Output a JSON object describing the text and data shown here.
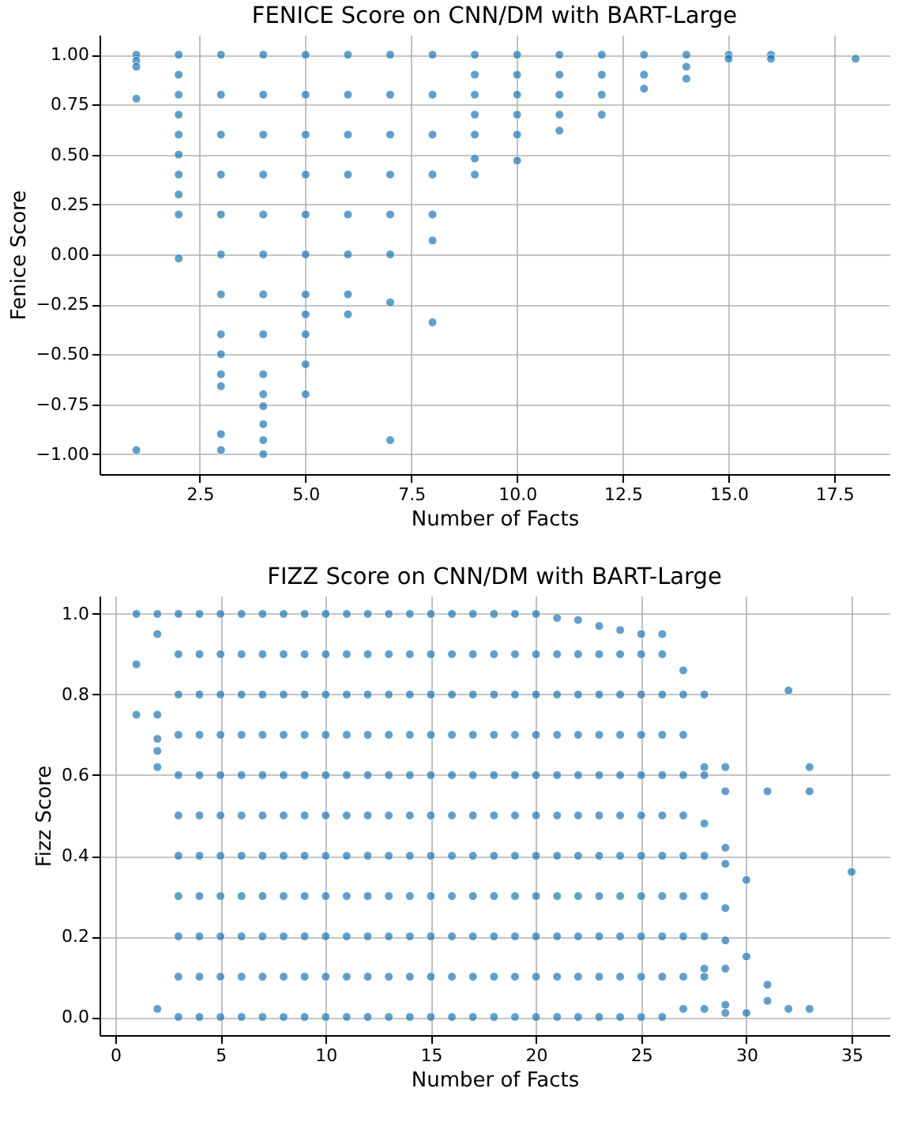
{
  "chart_data": [
    {
      "type": "scatter",
      "title": "FENICE Score on CNN/DM with BART-Large",
      "xlabel": "Number of Facts",
      "ylabel": "Fenice Score",
      "xlim": [
        0.13,
        18.8
      ],
      "xticks": [
        {
          "value": 2.5,
          "label": "2.5"
        },
        {
          "value": 5,
          "label": "5.0"
        },
        {
          "value": 7.5,
          "label": "7.5"
        },
        {
          "value": 10,
          "label": "10.0"
        },
        {
          "value": 12.5,
          "label": "12.5"
        },
        {
          "value": 15,
          "label": "15.0"
        },
        {
          "value": 17.5,
          "label": "17.5"
        }
      ],
      "ylim": [
        -1.1,
        1.1
      ],
      "yticks": [
        {
          "value": -1,
          "label": "−1.00"
        },
        {
          "value": -0.75,
          "label": "−0.75"
        },
        {
          "value": -0.5,
          "label": "−0.50"
        },
        {
          "value": -0.25,
          "label": "−0.25"
        },
        {
          "value": 0,
          "label": "0.00"
        },
        {
          "value": 0.25,
          "label": "0.25"
        },
        {
          "value": 0.5,
          "label": "0.50"
        },
        {
          "value": 0.75,
          "label": "0.75"
        },
        {
          "value": 1,
          "label": "1.00"
        }
      ],
      "grid": true,
      "legend": false,
      "marker": "circle",
      "series": [
        {
          "color": "#1f77b4",
          "x": [
            1,
            1,
            1,
            1,
            1
          ],
          "values": [
            1.0,
            0.97,
            0.94,
            0.78,
            -0.98
          ]
        },
        {
          "color": "#1f77b4",
          "x": [
            2,
            2,
            2,
            2,
            2,
            2,
            2,
            2,
            2,
            2
          ],
          "values": [
            1.0,
            0.9,
            0.8,
            0.7,
            0.6,
            0.5,
            0.4,
            0.3,
            0.2,
            -0.02
          ]
        },
        {
          "color": "#1f77b4",
          "x": [
            3,
            3,
            3,
            3,
            3,
            3,
            3,
            3,
            3,
            3,
            3,
            3,
            3
          ],
          "values": [
            1.0,
            0.8,
            0.6,
            0.4,
            0.2,
            0,
            -0.2,
            -0.4,
            -0.5,
            -0.6,
            -0.66,
            -0.9,
            -0.98
          ]
        },
        {
          "color": "#1f77b4",
          "x": [
            4,
            4,
            4,
            4,
            4,
            4,
            4,
            4,
            4,
            4,
            4,
            4,
            4,
            4
          ],
          "values": [
            1.0,
            0.8,
            0.6,
            0.4,
            0.2,
            0,
            -0.2,
            -0.4,
            -0.6,
            -0.7,
            -0.76,
            -0.85,
            -0.93,
            -1.0
          ]
        },
        {
          "color": "#1f77b4",
          "x": [
            5,
            5,
            5,
            5,
            5,
            5,
            5,
            5,
            5,
            5,
            5
          ],
          "values": [
            1.0,
            0.8,
            0.6,
            0.4,
            0.2,
            0,
            -0.2,
            -0.3,
            -0.4,
            -0.55,
            -0.7
          ]
        },
        {
          "color": "#1f77b4",
          "x": [
            6,
            6,
            6,
            6,
            6,
            6,
            6,
            6
          ],
          "values": [
            1.0,
            0.8,
            0.6,
            0.4,
            0.2,
            0,
            -0.2,
            -0.3
          ]
        },
        {
          "color": "#1f77b4",
          "x": [
            7,
            7,
            7,
            7,
            7,
            7,
            7,
            7
          ],
          "values": [
            1.0,
            0.8,
            0.6,
            0.4,
            0.2,
            0,
            -0.24,
            -0.93
          ]
        },
        {
          "color": "#1f77b4",
          "x": [
            8,
            8,
            8,
            8,
            8,
            8,
            8
          ],
          "values": [
            1.0,
            0.8,
            0.6,
            0.4,
            0.2,
            0.07,
            -0.34
          ]
        },
        {
          "color": "#1f77b4",
          "x": [
            9,
            9,
            9,
            9,
            9,
            9,
            9
          ],
          "values": [
            1.0,
            0.9,
            0.8,
            0.7,
            0.6,
            0.48,
            0.4
          ]
        },
        {
          "color": "#1f77b4",
          "x": [
            10,
            10,
            10,
            10,
            10,
            10
          ],
          "values": [
            1.0,
            0.9,
            0.8,
            0.7,
            0.6,
            0.47
          ]
        },
        {
          "color": "#1f77b4",
          "x": [
            11,
            11,
            11,
            11,
            11
          ],
          "values": [
            1.0,
            0.9,
            0.8,
            0.7,
            0.62
          ]
        },
        {
          "color": "#1f77b4",
          "x": [
            12,
            12,
            12,
            12
          ],
          "values": [
            1.0,
            0.9,
            0.8,
            0.7
          ]
        },
        {
          "color": "#1f77b4",
          "x": [
            13,
            13,
            13
          ],
          "values": [
            1.0,
            0.9,
            0.83
          ]
        },
        {
          "color": "#1f77b4",
          "x": [
            14,
            14,
            14
          ],
          "values": [
            1.0,
            0.94,
            0.88
          ]
        },
        {
          "color": "#1f77b4",
          "x": [
            15,
            15
          ],
          "values": [
            1.0,
            0.98
          ]
        },
        {
          "color": "#1f77b4",
          "x": [
            16,
            16
          ],
          "values": [
            1.0,
            0.98
          ]
        },
        {
          "color": "#1f77b4",
          "x": [
            18
          ],
          "values": [
            0.98
          ]
        }
      ]
    },
    {
      "type": "scatter",
      "title": "FIZZ Score on CNN/DM with BART-Large",
      "xlabel": "Number of Facts",
      "ylabel": "Fizz Score",
      "xlim": [
        -0.75,
        36.8
      ],
      "xticks": [
        0,
        5,
        10,
        15,
        20,
        25,
        30,
        35
      ],
      "ylim": [
        -0.045,
        1.045
      ],
      "yticks": [
        {
          "value": 0,
          "label": "0.0"
        },
        {
          "value": 0.2,
          "label": "0.2"
        },
        {
          "value": 0.4,
          "label": "0.4"
        },
        {
          "value": 0.6,
          "label": "0.6"
        },
        {
          "value": 0.8,
          "label": "0.8"
        },
        {
          "value": 1,
          "label": "1.0"
        }
      ],
      "grid": true,
      "legend": false,
      "marker": "circle",
      "series": [
        {
          "color": "#1f77b4",
          "x": [
            1,
            1,
            1
          ],
          "values": [
            1.0,
            0.875,
            0.75
          ]
        },
        {
          "color": "#1f77b4",
          "x": [
            2,
            2,
            2,
            2,
            2,
            2,
            2
          ],
          "values": [
            1.0,
            0.95,
            0.75,
            0.69,
            0.66,
            0.62,
            0.02
          ]
        },
        {
          "color": "#1f77b4",
          "x": [
            3,
            3,
            3,
            3,
            3,
            3,
            3,
            3,
            3,
            3,
            3
          ],
          "values": [
            0,
            0.1,
            0.2,
            0.3,
            0.4,
            0.5,
            0.6,
            0.7,
            0.8,
            0.9,
            1.0
          ]
        },
        {
          "color": "#1f77b4",
          "x": [
            4,
            4,
            4,
            4,
            4,
            4,
            4,
            4,
            4,
            4,
            4
          ],
          "values": [
            0,
            0.1,
            0.2,
            0.3,
            0.4,
            0.5,
            0.6,
            0.7,
            0.8,
            0.9,
            1.0
          ]
        },
        {
          "color": "#1f77b4",
          "x": [
            5,
            5,
            5,
            5,
            5,
            5,
            5,
            5,
            5,
            5,
            5
          ],
          "values": [
            0,
            0.1,
            0.2,
            0.3,
            0.4,
            0.5,
            0.6,
            0.7,
            0.8,
            0.9,
            1.0
          ]
        },
        {
          "color": "#1f77b4",
          "x": [
            6,
            6,
            6,
            6,
            6,
            6,
            6,
            6,
            6,
            6,
            6
          ],
          "values": [
            0,
            0.1,
            0.2,
            0.3,
            0.4,
            0.5,
            0.6,
            0.7,
            0.8,
            0.9,
            1.0
          ]
        },
        {
          "color": "#1f77b4",
          "x": [
            7,
            7,
            7,
            7,
            7,
            7,
            7,
            7,
            7,
            7,
            7
          ],
          "values": [
            0,
            0.1,
            0.2,
            0.3,
            0.4,
            0.5,
            0.6,
            0.7,
            0.8,
            0.9,
            1.0
          ]
        },
        {
          "color": "#1f77b4",
          "x": [
            8,
            8,
            8,
            8,
            8,
            8,
            8,
            8,
            8,
            8,
            8
          ],
          "values": [
            0,
            0.1,
            0.2,
            0.3,
            0.4,
            0.5,
            0.6,
            0.7,
            0.8,
            0.9,
            1.0
          ]
        },
        {
          "color": "#1f77b4",
          "x": [
            9,
            9,
            9,
            9,
            9,
            9,
            9,
            9,
            9,
            9,
            9
          ],
          "values": [
            0,
            0.1,
            0.2,
            0.3,
            0.4,
            0.5,
            0.6,
            0.7,
            0.8,
            0.9,
            1.0
          ]
        },
        {
          "color": "#1f77b4",
          "x": [
            10,
            10,
            10,
            10,
            10,
            10,
            10,
            10,
            10,
            10,
            10
          ],
          "values": [
            0,
            0.1,
            0.2,
            0.3,
            0.4,
            0.5,
            0.6,
            0.7,
            0.8,
            0.9,
            1.0
          ]
        },
        {
          "color": "#1f77b4",
          "x": [
            11,
            11,
            11,
            11,
            11,
            11,
            11,
            11,
            11,
            11,
            11
          ],
          "values": [
            0,
            0.1,
            0.2,
            0.3,
            0.4,
            0.5,
            0.6,
            0.7,
            0.8,
            0.9,
            1.0
          ]
        },
        {
          "color": "#1f77b4",
          "x": [
            12,
            12,
            12,
            12,
            12,
            12,
            12,
            12,
            12,
            12,
            12
          ],
          "values": [
            0,
            0.1,
            0.2,
            0.3,
            0.4,
            0.5,
            0.6,
            0.7,
            0.8,
            0.9,
            1.0
          ]
        },
        {
          "color": "#1f77b4",
          "x": [
            13,
            13,
            13,
            13,
            13,
            13,
            13,
            13,
            13,
            13,
            13
          ],
          "values": [
            0,
            0.1,
            0.2,
            0.3,
            0.4,
            0.5,
            0.6,
            0.7,
            0.8,
            0.9,
            1.0
          ]
        },
        {
          "color": "#1f77b4",
          "x": [
            14,
            14,
            14,
            14,
            14,
            14,
            14,
            14,
            14,
            14,
            14
          ],
          "values": [
            0,
            0.1,
            0.2,
            0.3,
            0.4,
            0.5,
            0.6,
            0.7,
            0.8,
            0.9,
            1.0
          ]
        },
        {
          "color": "#1f77b4",
          "x": [
            15,
            15,
            15,
            15,
            15,
            15,
            15,
            15,
            15,
            15,
            15
          ],
          "values": [
            0,
            0.1,
            0.2,
            0.3,
            0.4,
            0.5,
            0.6,
            0.7,
            0.8,
            0.9,
            1.0
          ]
        },
        {
          "color": "#1f77b4",
          "x": [
            16,
            16,
            16,
            16,
            16,
            16,
            16,
            16,
            16,
            16,
            16
          ],
          "values": [
            0,
            0.1,
            0.2,
            0.3,
            0.4,
            0.5,
            0.6,
            0.7,
            0.8,
            0.9,
            1.0
          ]
        },
        {
          "color": "#1f77b4",
          "x": [
            17,
            17,
            17,
            17,
            17,
            17,
            17,
            17,
            17,
            17,
            17
          ],
          "values": [
            0,
            0.1,
            0.2,
            0.3,
            0.4,
            0.5,
            0.6,
            0.7,
            0.8,
            0.9,
            1.0
          ]
        },
        {
          "color": "#1f77b4",
          "x": [
            18,
            18,
            18,
            18,
            18,
            18,
            18,
            18,
            18,
            18,
            18
          ],
          "values": [
            0,
            0.1,
            0.2,
            0.3,
            0.4,
            0.5,
            0.6,
            0.7,
            0.8,
            0.9,
            1.0
          ]
        },
        {
          "color": "#1f77b4",
          "x": [
            19,
            19,
            19,
            19,
            19,
            19,
            19,
            19,
            19,
            19,
            19
          ],
          "values": [
            0,
            0.1,
            0.2,
            0.3,
            0.4,
            0.5,
            0.6,
            0.7,
            0.8,
            0.9,
            1.0
          ]
        },
        {
          "color": "#1f77b4",
          "x": [
            20,
            20,
            20,
            20,
            20,
            20,
            20,
            20,
            20,
            20,
            20
          ],
          "values": [
            0,
            0.1,
            0.2,
            0.3,
            0.4,
            0.5,
            0.6,
            0.7,
            0.8,
            0.9,
            1.0
          ]
        },
        {
          "color": "#1f77b4",
          "x": [
            21,
            21,
            21,
            21,
            21,
            21,
            21,
            21,
            21,
            21,
            21
          ],
          "values": [
            0,
            0.1,
            0.2,
            0.3,
            0.4,
            0.5,
            0.6,
            0.7,
            0.8,
            0.9,
            0.99
          ]
        },
        {
          "color": "#1f77b4",
          "x": [
            22,
            22,
            22,
            22,
            22,
            22,
            22,
            22,
            22,
            22,
            22
          ],
          "values": [
            0,
            0.1,
            0.2,
            0.3,
            0.4,
            0.5,
            0.6,
            0.7,
            0.8,
            0.9,
            0.985
          ]
        },
        {
          "color": "#1f77b4",
          "x": [
            23,
            23,
            23,
            23,
            23,
            23,
            23,
            23,
            23,
            23,
            23
          ],
          "values": [
            0,
            0.1,
            0.2,
            0.3,
            0.4,
            0.5,
            0.6,
            0.7,
            0.8,
            0.9,
            0.97
          ]
        },
        {
          "color": "#1f77b4",
          "x": [
            24,
            24,
            24,
            24,
            24,
            24,
            24,
            24,
            24,
            24,
            24
          ],
          "values": [
            0,
            0.1,
            0.2,
            0.3,
            0.4,
            0.5,
            0.6,
            0.7,
            0.8,
            0.9,
            0.96
          ]
        },
        {
          "color": "#1f77b4",
          "x": [
            25,
            25,
            25,
            25,
            25,
            25,
            25,
            25,
            25,
            25,
            25
          ],
          "values": [
            0,
            0.1,
            0.2,
            0.3,
            0.4,
            0.5,
            0.6,
            0.7,
            0.8,
            0.9,
            0.95
          ]
        },
        {
          "color": "#1f77b4",
          "x": [
            26,
            26,
            26,
            26,
            26,
            26,
            26,
            26,
            26,
            26,
            26
          ],
          "values": [
            0,
            0.1,
            0.2,
            0.3,
            0.4,
            0.5,
            0.6,
            0.7,
            0.8,
            0.9,
            0.95
          ]
        },
        {
          "color": "#1f77b4",
          "x": [
            27,
            27,
            27,
            27,
            27,
            27,
            27,
            27,
            27,
            27
          ],
          "values": [
            0.86,
            0.8,
            0.7,
            0.6,
            0.5,
            0.4,
            0.3,
            0.2,
            0.1,
            0.02
          ]
        },
        {
          "color": "#1f77b4",
          "x": [
            28,
            28,
            28,
            28,
            28,
            28,
            28,
            28,
            28,
            28
          ],
          "values": [
            0.8,
            0.62,
            0.6,
            0.48,
            0.4,
            0.3,
            0.2,
            0.12,
            0.1,
            0.02
          ]
        },
        {
          "color": "#1f77b4",
          "x": [
            29,
            29,
            29,
            29,
            29,
            29,
            29,
            29,
            29
          ],
          "values": [
            0.62,
            0.56,
            0.42,
            0.38,
            0.27,
            0.19,
            0.12,
            0.03,
            0.01
          ]
        },
        {
          "color": "#1f77b4",
          "x": [
            30,
            30,
            30
          ],
          "values": [
            0.34,
            0.15,
            0.01
          ]
        },
        {
          "color": "#1f77b4",
          "x": [
            31,
            31,
            31
          ],
          "values": [
            0.56,
            0.08,
            0.04
          ]
        },
        {
          "color": "#1f77b4",
          "x": [
            32,
            32
          ],
          "values": [
            0.81,
            0.02
          ]
        },
        {
          "color": "#1f77b4",
          "x": [
            33,
            33,
            33
          ],
          "values": [
            0.62,
            0.56,
            0.02
          ]
        },
        {
          "color": "#1f77b4",
          "x": [
            35
          ],
          "values": [
            0.36
          ]
        }
      ]
    }
  ]
}
